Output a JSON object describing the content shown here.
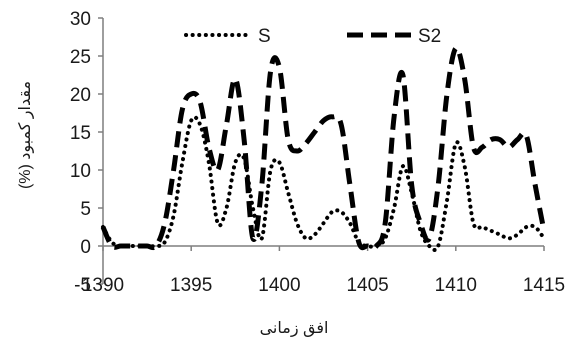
{
  "chart_data": {
    "type": "line",
    "title": "",
    "xlabel": "افق زمانی",
    "ylabel": "مقدار کمبود (%)",
    "xlim": [
      1390,
      1415
    ],
    "ylim": [
      -5,
      30
    ],
    "x_ticks": [
      1390,
      1395,
      1400,
      1405,
      1410,
      1415
    ],
    "x_tick_labels": [
      "1390",
      "1395",
      "1400",
      "1405",
      "1410",
      "1415"
    ],
    "y_ticks": [
      0,
      5,
      10,
      15,
      20,
      25,
      30
    ],
    "y_tick_labels": [
      "0",
      "5",
      "10",
      "15",
      "20",
      "25",
      "30"
    ],
    "y_bottom_label": "-5",
    "grid": false,
    "legend_position": "top",
    "series": [
      {
        "name": "S",
        "style": "dotted",
        "color": "#000000",
        "x": [
          1390,
          1390.5,
          1391,
          1391.5,
          1392,
          1392.5,
          1393,
          1393.5,
          1394,
          1394.5,
          1395,
          1395.5,
          1396,
          1396.5,
          1397,
          1397.5,
          1398,
          1398.5,
          1399,
          1399.5,
          1400,
          1400.5,
          1401,
          1401.5,
          1402,
          1402.5,
          1403,
          1403.5,
          1404,
          1404.5,
          1405,
          1405.5,
          1406,
          1406.5,
          1407,
          1407.5,
          1408,
          1408.5,
          1409,
          1409.5,
          1410,
          1410.5,
          1411,
          1411.5,
          1412,
          1412.5,
          1413,
          1413.5,
          1414,
          1414.5,
          1415
        ],
        "values": [
          2.5,
          0.5,
          0,
          0,
          0,
          0,
          0,
          0.5,
          4,
          11,
          16.5,
          16,
          11,
          3,
          5,
          11,
          11.5,
          5,
          1,
          10,
          11,
          7,
          3,
          1,
          1.5,
          3,
          4.5,
          4.5,
          3,
          0.5,
          0,
          0,
          1,
          5,
          10.5,
          7,
          2,
          0,
          0,
          6,
          13.5,
          10.5,
          3,
          2.5,
          2,
          1.5,
          1,
          1.5,
          2.5,
          2.5,
          1
        ]
      },
      {
        "name": "S2",
        "style": "dashed",
        "color": "#000000",
        "x": [
          1390,
          1390.5,
          1391,
          1391.5,
          1392,
          1392.5,
          1393,
          1393.5,
          1394,
          1394.5,
          1395,
          1395.5,
          1396,
          1396.5,
          1397,
          1397.5,
          1398,
          1398.5,
          1399,
          1399.5,
          1400,
          1400.5,
          1401,
          1401.5,
          1402,
          1402.5,
          1403,
          1403.5,
          1404,
          1404.5,
          1405,
          1405.5,
          1406,
          1406.5,
          1407,
          1407.5,
          1408,
          1408.5,
          1409,
          1409.5,
          1410,
          1410.5,
          1411,
          1411.5,
          1412,
          1412.5,
          1413,
          1413.5,
          1414,
          1414.5,
          1415
        ],
        "values": [
          2.5,
          0,
          0,
          0,
          0,
          0,
          0,
          3,
          10,
          18,
          20,
          19,
          13,
          10,
          16,
          22,
          14,
          1,
          8,
          23,
          23.5,
          14,
          12.5,
          13.5,
          15,
          16.5,
          17,
          16,
          8,
          0.5,
          0,
          0,
          3,
          17,
          22.5,
          8,
          3,
          1,
          8,
          20,
          26,
          22,
          13,
          13,
          14,
          14,
          13,
          14,
          14.5,
          8,
          2
        ]
      }
    ]
  }
}
